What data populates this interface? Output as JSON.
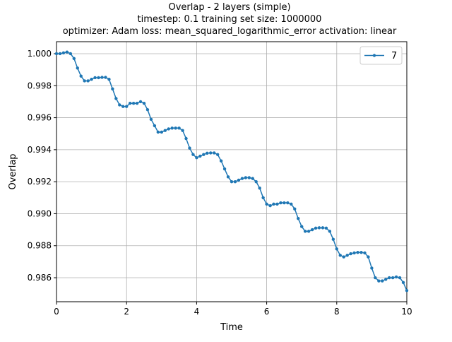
{
  "chart_data": {
    "type": "line",
    "title": [
      "Overlap - 2 layers (simple)",
      "timestep: 0.1 training set size: 1000000",
      "optimizer: Adam loss: mean_squared_logarithmic_error activation: linear"
    ],
    "x_label": "Time",
    "y_label": "Overlap",
    "x": [
      0,
      0.1,
      0.2,
      0.3,
      0.4,
      0.5,
      0.6,
      0.7,
      0.8,
      0.9,
      1,
      1.1,
      1.2,
      1.3,
      1.4,
      1.5,
      1.6,
      1.7,
      1.8,
      1.9,
      2,
      2.1,
      2.2,
      2.3,
      2.4,
      2.5,
      2.6,
      2.7,
      2.8,
      2.9,
      3,
      3.1,
      3.2,
      3.3,
      3.4,
      3.5,
      3.6,
      3.7,
      3.8,
      3.9,
      4,
      4.1,
      4.2,
      4.3,
      4.4,
      4.5,
      4.6,
      4.7,
      4.8,
      4.9,
      5,
      5.1,
      5.2,
      5.3,
      5.4,
      5.5,
      5.6,
      5.7,
      5.8,
      5.9,
      6,
      6.1,
      6.2,
      6.3,
      6.4,
      6.5,
      6.6,
      6.7,
      6.8,
      6.9,
      7,
      7.1,
      7.2,
      7.3,
      7.4,
      7.5,
      7.6,
      7.7,
      7.8,
      7.9,
      8,
      8.1,
      8.2,
      8.3,
      8.4,
      8.5,
      8.6,
      8.7,
      8.8,
      8.9,
      9,
      9.1,
      9.2,
      9.3,
      9.4,
      9.5,
      9.6,
      9.7,
      9.8,
      9.9,
      10
    ],
    "series": [
      {
        "name": "7",
        "color": "#1f77b4",
        "values": [
          1.0,
          1.0,
          1.00005,
          1.0001,
          1.0,
          0.9997,
          0.9991,
          0.9986,
          0.9983,
          0.9983,
          0.9984,
          0.9985,
          0.9985,
          0.99852,
          0.99852,
          0.9984,
          0.9978,
          0.9972,
          0.9968,
          0.9967,
          0.9967,
          0.9969,
          0.9969,
          0.9969,
          0.997,
          0.9969,
          0.9965,
          0.9959,
          0.9955,
          0.9951,
          0.9951,
          0.9952,
          0.9953,
          0.99535,
          0.99535,
          0.99535,
          0.9952,
          0.9947,
          0.9941,
          0.9937,
          0.9935,
          0.9936,
          0.9937,
          0.99378,
          0.9938,
          0.9938,
          0.9937,
          0.9933,
          0.9928,
          0.9923,
          0.992,
          0.992,
          0.9921,
          0.9922,
          0.99225,
          0.99225,
          0.9922,
          0.992,
          0.9916,
          0.991,
          0.9906,
          0.9905,
          0.9906,
          0.9906,
          0.99068,
          0.99068,
          0.99068,
          0.9906,
          0.9903,
          0.9897,
          0.9892,
          0.9889,
          0.9889,
          0.989,
          0.9891,
          0.98912,
          0.98912,
          0.9891,
          0.9889,
          0.9884,
          0.9878,
          0.9874,
          0.9873,
          0.9874,
          0.9875,
          0.98755,
          0.98758,
          0.98758,
          0.98755,
          0.9873,
          0.9866,
          0.986,
          0.9858,
          0.9858,
          0.9859,
          0.986,
          0.986,
          0.98605,
          0.986,
          0.9857,
          0.9852
        ]
      }
    ],
    "xlim": [
      0,
      10
    ],
    "xticks": [
      0,
      2,
      4,
      6,
      8,
      10
    ],
    "ylim": [
      0.9845,
      1.00075
    ],
    "yticks": [
      {
        "value": 0.986,
        "label": "0.986"
      },
      {
        "value": 0.988,
        "label": "0.988"
      },
      {
        "value": 0.99,
        "label": "0.990"
      },
      {
        "value": 0.992,
        "label": "0.992"
      },
      {
        "value": 0.994,
        "label": "0.994"
      },
      {
        "value": 0.996,
        "label": "0.996"
      },
      {
        "value": 0.998,
        "label": "0.998"
      },
      {
        "value": 1,
        "label": "1.000"
      }
    ],
    "grid": true,
    "legend": "upper right"
  }
}
